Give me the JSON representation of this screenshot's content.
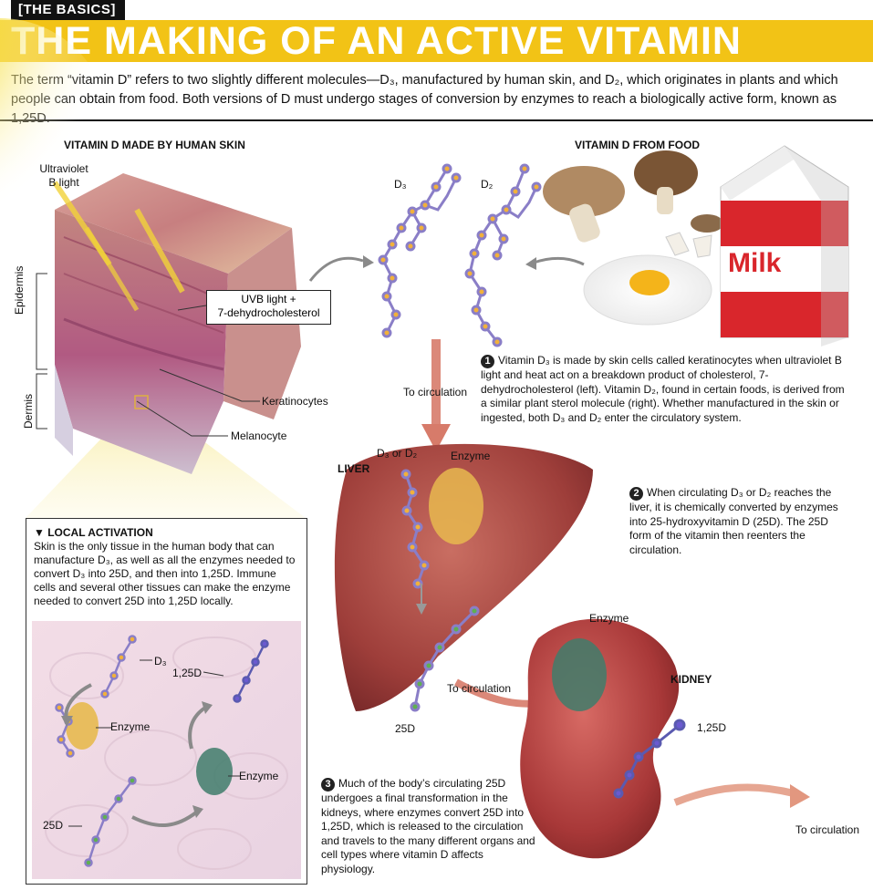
{
  "header": {
    "tag": "[THE BASICS]",
    "title": "THE MAKING OF AN ACTIVE VITAMIN",
    "intro": "The term “vitamin D” refers to two slightly different molecules—D₃, manufactured by human skin, and D₂, which originates in plants and which people can obtain from food. Both versions of D must undergo stages of conversion by enzymes to reach a biologically active form, known as 1,25D."
  },
  "skin": {
    "heading": "VITAMIN D MADE BY HUMAN SKIN",
    "uv_label": "Ultraviolet\nB light",
    "epidermis": "Epidermis",
    "dermis": "Dermis",
    "callout": "UVB light +\n7-dehydrocholesterol",
    "keratinocytes": "Keratinocytes",
    "melanocyte": "Melanocyte"
  },
  "food": {
    "heading": "VITAMIN D FROM FOOD",
    "milk": "Milk"
  },
  "molecules": {
    "d3": "D₃",
    "d2": "D₂",
    "to_circulation_1": "To circulation"
  },
  "liver": {
    "label": "LIVER",
    "d3_or_d2": "D₃ or D₂",
    "enzyme": "Enzyme",
    "to_circulation": "To circulation",
    "product": "25D"
  },
  "kidney": {
    "label": "KIDNEY",
    "enzyme": "Enzyme",
    "product": "1,25D",
    "to_circulation": "To circulation"
  },
  "steps": [
    {
      "num": "1",
      "text": "Vitamin D₃ is made by skin cells called keratinocytes when ultraviolet B light and heat act on a breakdown product of cholesterol, 7-dehydrocholesterol (left). Vitamin D₂, found in certain foods, is derived from a similar plant sterol molecule (right). Whether manufactured in the skin or ingested, both D₃ and D₂ enter the circulatory system."
    },
    {
      "num": "2",
      "text": "When circulating D₃ or D₂ reaches the liver, it is chemically converted by enzymes into 25-hydroxyvitamin D (25D). The 25D form of the vitamin then reenters the circulation."
    },
    {
      "num": "3",
      "text": "Much of the body’s circulating 25D undergoes a final transformation in the kidneys, where enzymes convert 25D into 1,25D, which is released to the circulation and travels to the many different organs and cell types where vitamin D affects physiology."
    }
  ],
  "local": {
    "title": "▼ LOCAL ACTIVATION",
    "text": "Skin is the only tissue in the human body that can manufacture D₃, as well as all the enzymes needed to convert D₃ into 25D, and then into 1,25D. Immune cells and several other tissues can make the enzyme needed to convert 25D into 1,25D locally.",
    "d3": "D₃",
    "product_125d": "1,25D",
    "enzyme_1": "Enzyme",
    "enzyme_2": "Enzyme",
    "product_25d": "25D"
  }
}
